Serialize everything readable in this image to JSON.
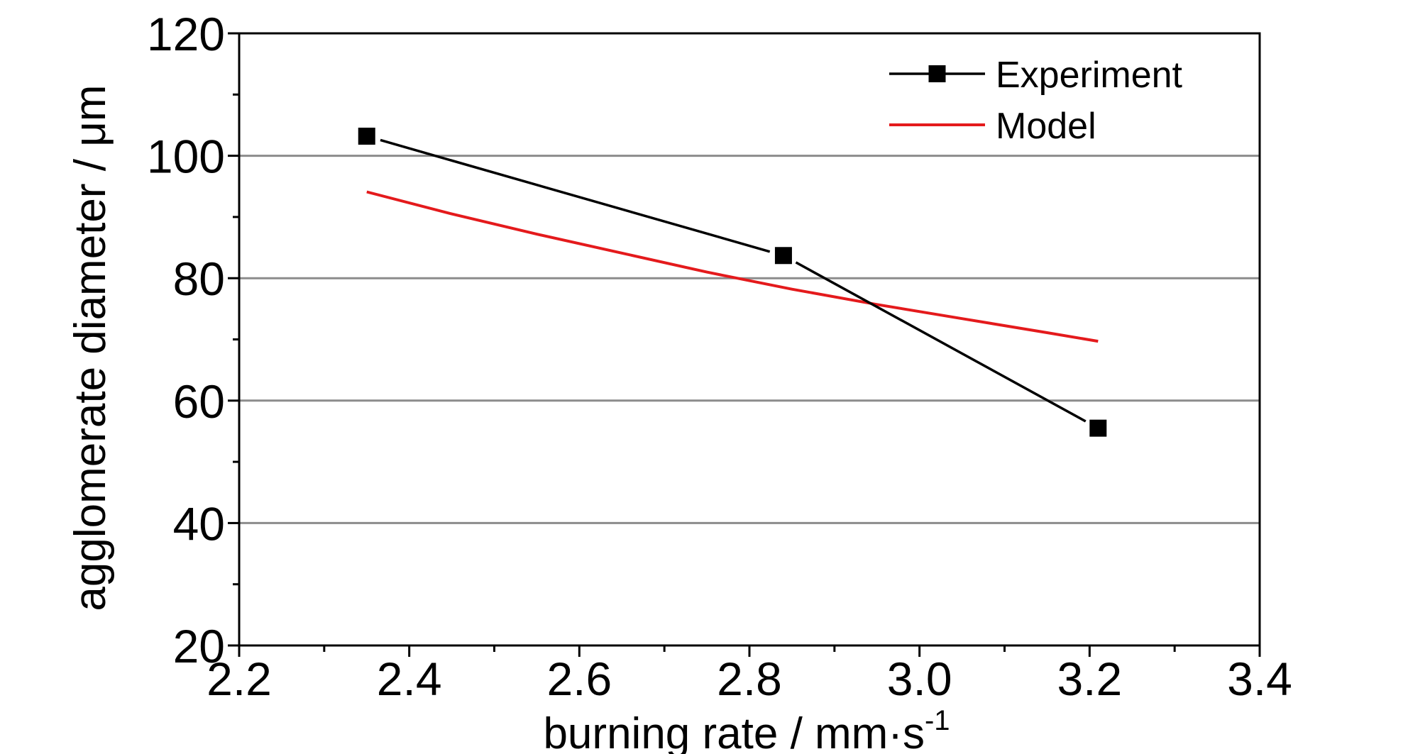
{
  "chart_data": {
    "type": "line",
    "xlabel": "burning rate / mm·s",
    "xlabel_superscript": "-1",
    "ylabel": "agglomerate diameter / μm",
    "xlim": [
      2.2,
      3.4
    ],
    "ylim": [
      20,
      120
    ],
    "x_ticks": [
      2.2,
      2.4,
      2.6,
      2.8,
      3.0,
      3.2,
      3.4
    ],
    "x_tick_labels": [
      "2.2",
      "2.4",
      "2.6",
      "2.8",
      "3.0",
      "3.2",
      "3.4"
    ],
    "y_ticks": [
      20,
      40,
      60,
      80,
      100,
      120
    ],
    "y_tick_labels": [
      "20",
      "40",
      "60",
      "80",
      "100",
      "120"
    ],
    "grid": "horizontal",
    "legend_position": "top-right",
    "series": [
      {
        "name": "Experiment",
        "color": "#000000",
        "marker": "square",
        "x": [
          2.35,
          2.84,
          3.21
        ],
        "y": [
          103.2,
          83.7,
          55.5
        ]
      },
      {
        "name": "Model",
        "color": "#e41a1c",
        "marker": "none",
        "x": [
          2.35,
          2.45,
          2.55,
          2.65,
          2.75,
          2.85,
          2.95,
          3.05,
          3.15,
          3.21
        ],
        "y": [
          94.1,
          90.5,
          87.2,
          84.1,
          81.0,
          78.2,
          75.7,
          73.4,
          71.1,
          69.7
        ]
      }
    ]
  }
}
